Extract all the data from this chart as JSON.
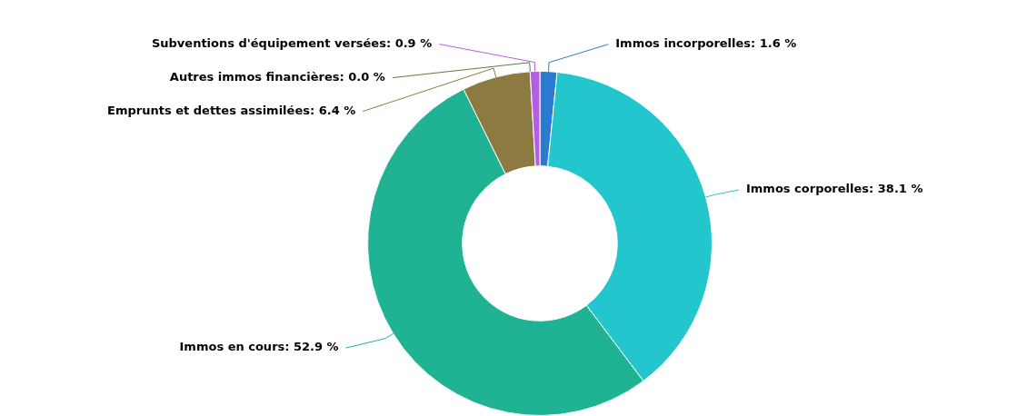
{
  "chart_data": {
    "type": "donut",
    "categories": [
      "Immos incorporelles",
      "Immos corporelles",
      "Immos en cours",
      "Emprunts et dettes assimilées",
      "Autres immos financières",
      "Subventions d'équipement versées"
    ],
    "values": [
      1.6,
      38.1,
      52.9,
      6.4,
      0.0,
      0.9
    ],
    "colors": [
      "#2b7bd0",
      "#24c6cd",
      "#1fb394",
      "#8c7a42",
      "#5e7a3c",
      "#b45ee8"
    ],
    "value_labels": [
      ": 1.6 %",
      ": 38.1 %",
      ": 52.9 %",
      ": 6.4 %",
      ": 0.0 %",
      ": 0.9 %"
    ],
    "legend": false
  }
}
